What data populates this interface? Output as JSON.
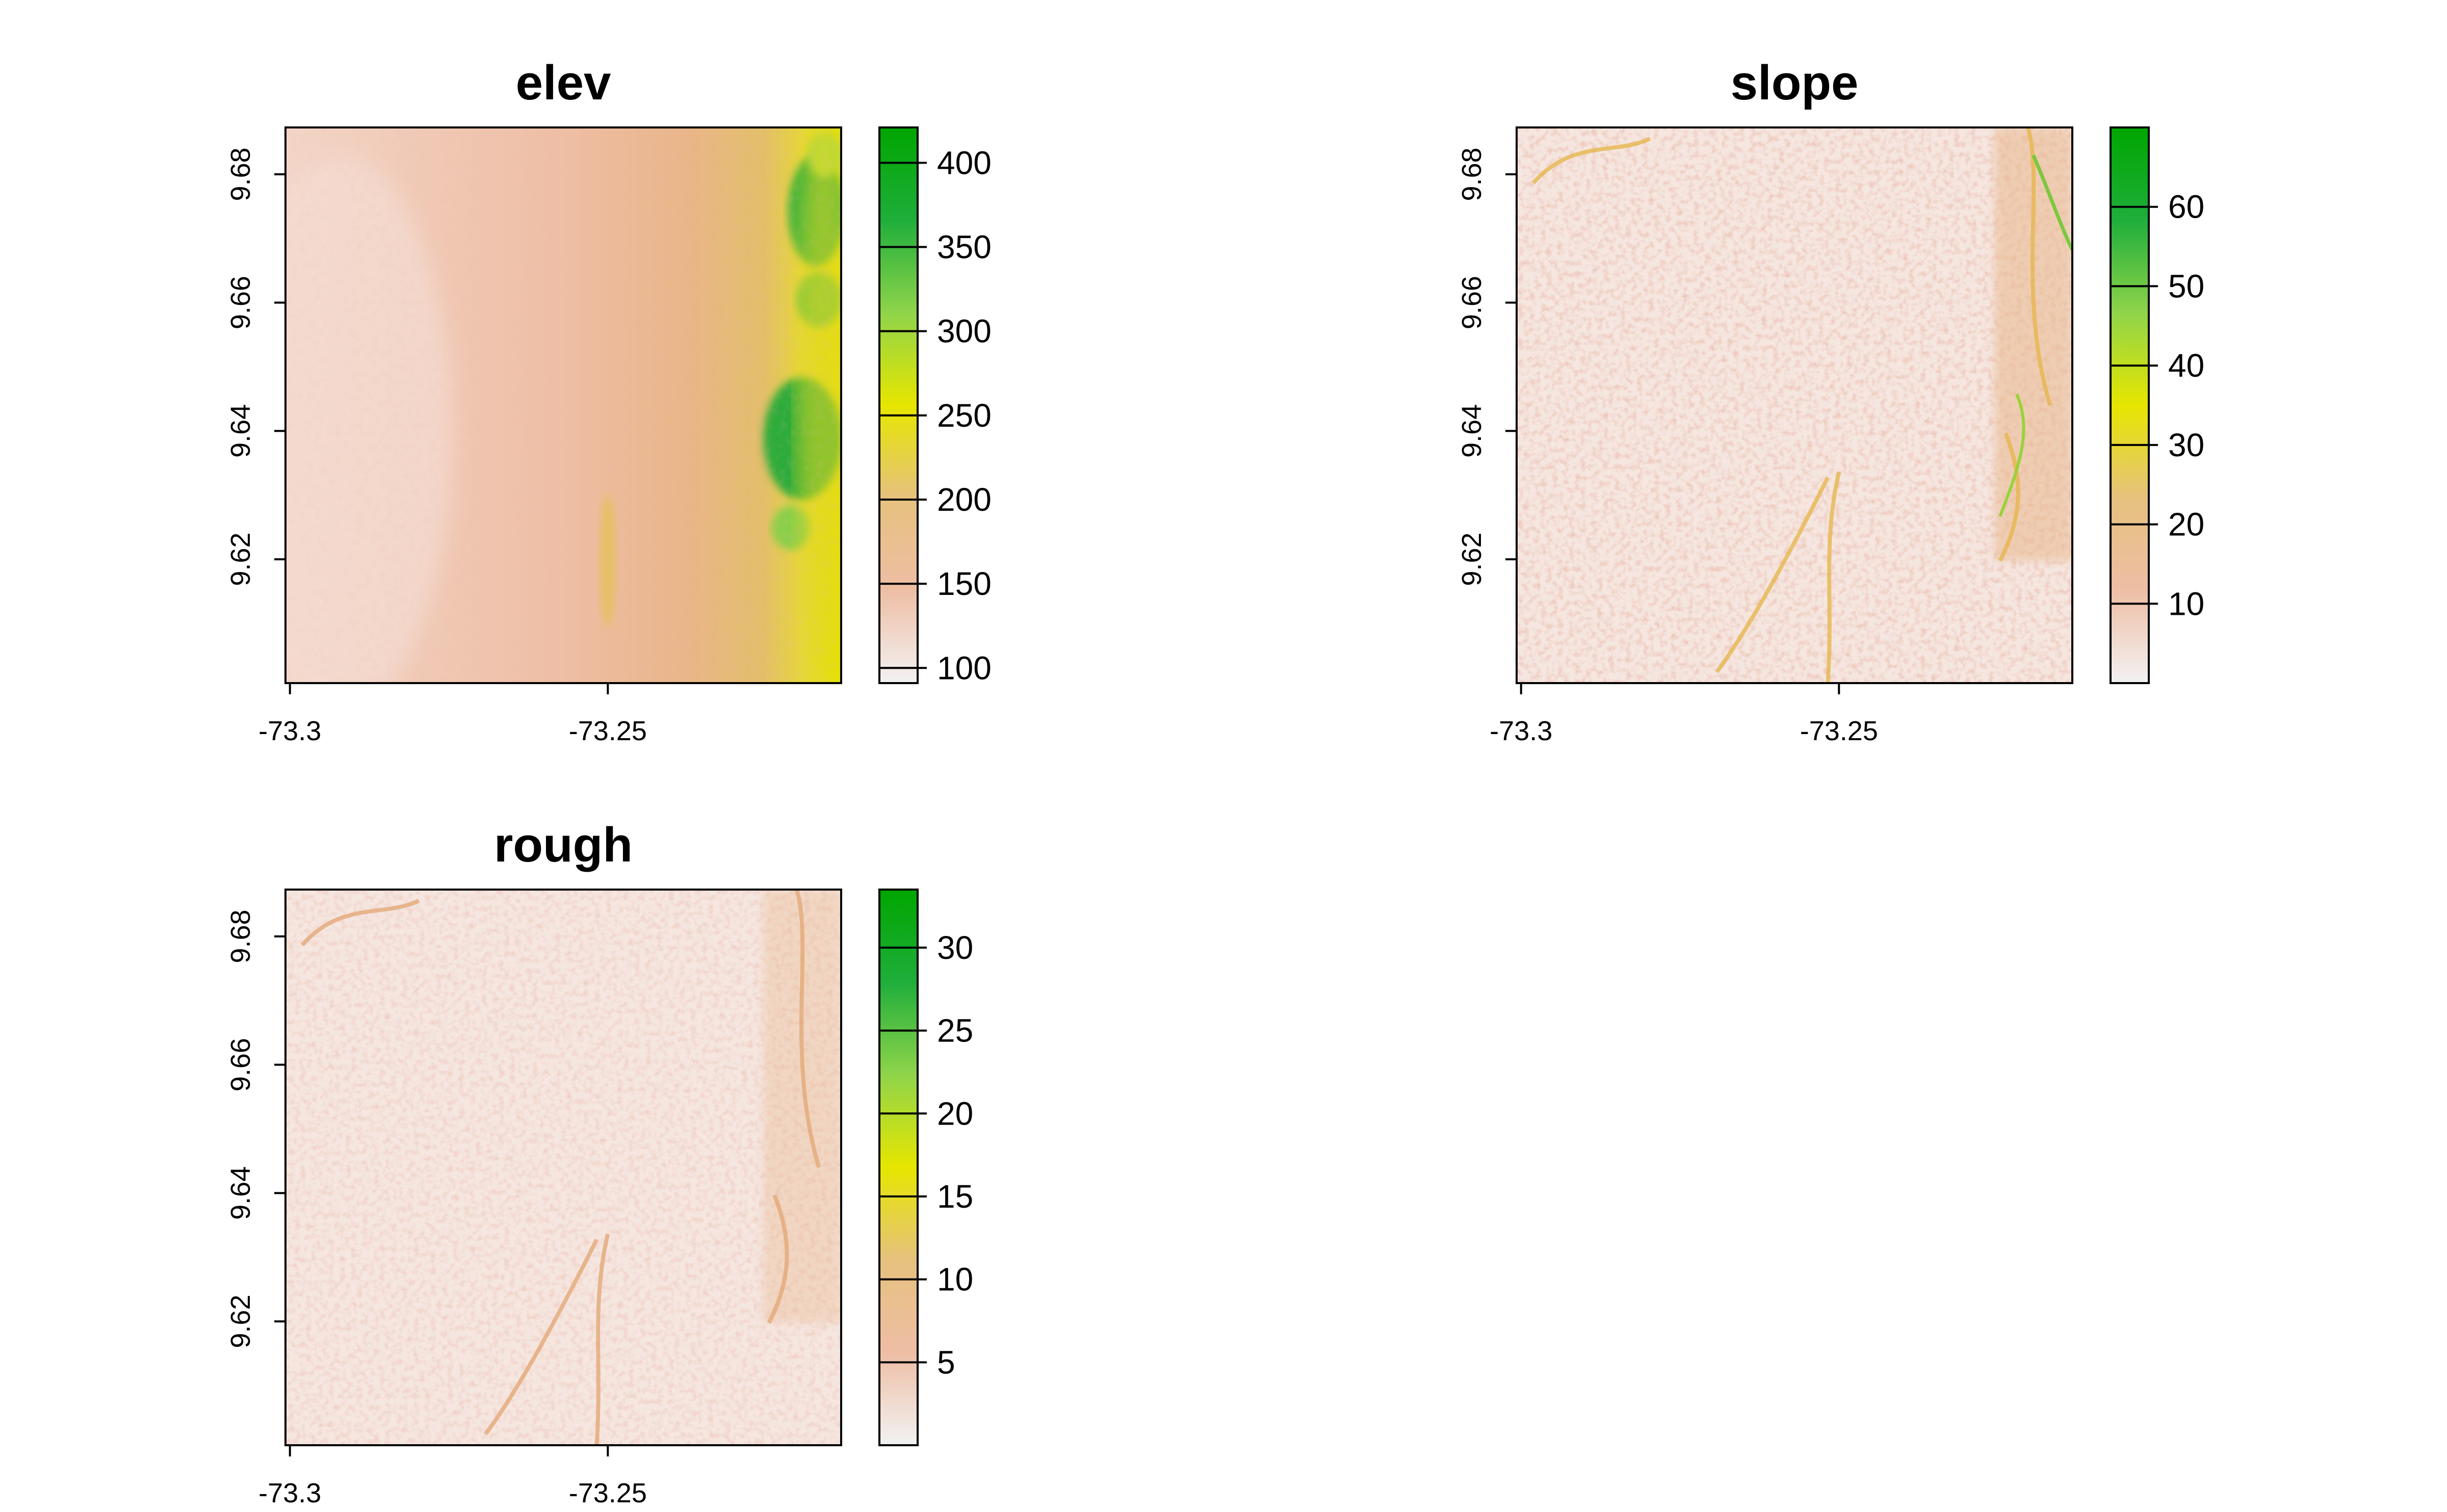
{
  "palette": [
    "#F2F2F2",
    "#EEBEA5",
    "#E6C17E",
    "#E6E600",
    "#8FD44A",
    "#1FAE3B",
    "#00A600"
  ],
  "chart_data": [
    {
      "type": "heatmap",
      "title": "elev",
      "x_ticks": [
        "-73.3",
        "-73.25"
      ],
      "x_tick_values": [
        -73.3,
        -73.25
      ],
      "y_ticks": [
        "9.62",
        "9.64",
        "9.66",
        "9.68"
      ],
      "y_tick_values": [
        9.62,
        9.64,
        9.66,
        9.68
      ],
      "xlim": [
        -73.3007,
        -73.2133
      ],
      "ylim": [
        9.6007,
        9.6873
      ],
      "legend": {
        "ticks": [
          "100",
          "150",
          "200",
          "250",
          "300",
          "350",
          "400"
        ],
        "tick_values": [
          100,
          150,
          200,
          250,
          300,
          350,
          400
        ],
        "range": [
          91,
          421
        ],
        "placement": "right"
      },
      "scene": "elev"
    },
    {
      "type": "heatmap",
      "title": "slope",
      "x_ticks": [
        "-73.3",
        "-73.25"
      ],
      "x_tick_values": [
        -73.3,
        -73.25
      ],
      "y_ticks": [
        "9.62",
        "9.64",
        "9.66",
        "9.68"
      ],
      "y_tick_values": [
        9.62,
        9.64,
        9.66,
        9.68
      ],
      "xlim": [
        -73.3007,
        -73.2133
      ],
      "ylim": [
        9.6007,
        9.6873
      ],
      "legend": {
        "ticks": [
          "10",
          "20",
          "30",
          "40",
          "50",
          "60"
        ],
        "tick_values": [
          10,
          20,
          30,
          40,
          50,
          60
        ],
        "range": [
          0,
          70
        ],
        "placement": "right"
      },
      "scene": "slope"
    },
    {
      "type": "heatmap",
      "title": "rough",
      "x_ticks": [
        "-73.3",
        "-73.25"
      ],
      "x_tick_values": [
        -73.3,
        -73.25
      ],
      "y_ticks": [
        "9.62",
        "9.64",
        "9.66",
        "9.68"
      ],
      "y_tick_values": [
        9.62,
        9.64,
        9.66,
        9.68
      ],
      "xlim": [
        -73.3007,
        -73.2133
      ],
      "ylim": [
        9.6007,
        9.6873
      ],
      "legend": {
        "ticks": [
          "5",
          "10",
          "15",
          "20",
          "25",
          "30"
        ],
        "tick_values": [
          5,
          10,
          15,
          20,
          25,
          30
        ],
        "range": [
          0,
          33.5
        ],
        "placement": "right"
      },
      "scene": "rough"
    }
  ]
}
